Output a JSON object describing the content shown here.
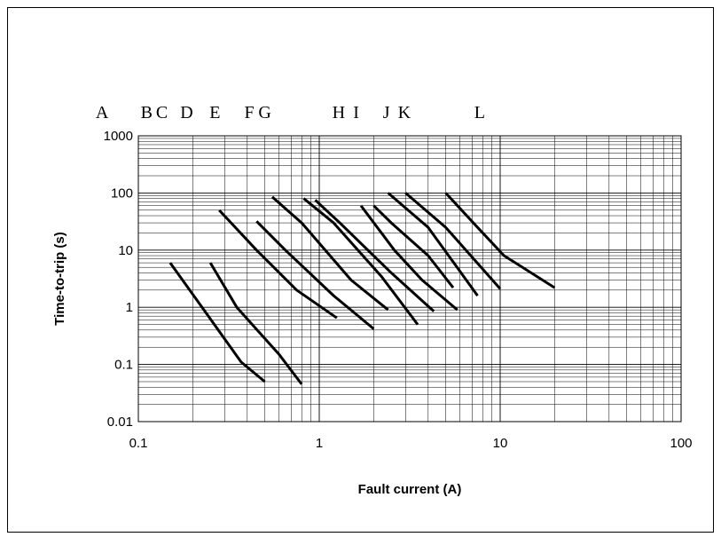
{
  "chart_data": {
    "type": "line",
    "title": "",
    "xlabel": "Fault current (A)",
    "ylabel": "Time-to-trip (s)",
    "x_scale": "log",
    "y_scale": "log",
    "xlim": [
      0.1,
      100
    ],
    "ylim": [
      0.01,
      1000
    ],
    "grid": true,
    "legend": "none",
    "x_ticks": [
      {
        "value": 0.1,
        "label": "0.1"
      },
      {
        "value": 1,
        "label": "1"
      },
      {
        "value": 10,
        "label": "10"
      },
      {
        "value": 100,
        "label": "100"
      }
    ],
    "y_ticks": [
      {
        "value": 1000,
        "label": "1000"
      },
      {
        "value": 100,
        "label": "100"
      },
      {
        "value": 10,
        "label": "10"
      },
      {
        "value": 1,
        "label": "1"
      },
      {
        "value": 0.1,
        "label": "0.1"
      },
      {
        "value": 0.01,
        "label": "0.01"
      }
    ],
    "curve_labels": [
      {
        "text": "A",
        "x": 0.063
      },
      {
        "text": "B",
        "x": 0.111
      },
      {
        "text": "C",
        "x": 0.135
      },
      {
        "text": "D",
        "x": 0.185
      },
      {
        "text": "E",
        "x": 0.265
      },
      {
        "text": "F",
        "x": 0.41
      },
      {
        "text": "G",
        "x": 0.5
      },
      {
        "text": "H",
        "x": 1.28
      },
      {
        "text": "I",
        "x": 1.6
      },
      {
        "text": "J",
        "x": 2.35
      },
      {
        "text": "K",
        "x": 2.95
      },
      {
        "text": "L",
        "x": 7.7
      }
    ],
    "series": [
      {
        "points": [
          [
            0.15,
            6
          ],
          [
            0.22,
            1.1
          ],
          [
            0.37,
            0.11
          ],
          [
            0.5,
            0.05
          ]
        ]
      },
      {
        "points": [
          [
            0.25,
            6
          ],
          [
            0.35,
            1
          ],
          [
            0.6,
            0.15
          ],
          [
            0.8,
            0.045
          ]
        ]
      },
      {
        "points": [
          [
            0.28,
            50
          ],
          [
            0.45,
            10
          ],
          [
            0.75,
            2
          ],
          [
            1.25,
            0.65
          ]
        ]
      },
      {
        "points": [
          [
            0.45,
            32
          ],
          [
            0.65,
            10
          ],
          [
            1.2,
            1.6
          ],
          [
            2.0,
            0.42
          ]
        ]
      },
      {
        "points": [
          [
            0.55,
            85
          ],
          [
            0.8,
            30
          ],
          [
            1.5,
            3
          ],
          [
            2.4,
            0.9
          ]
        ]
      },
      {
        "points": [
          [
            0.82,
            80
          ],
          [
            1.2,
            30
          ],
          [
            2.2,
            3.5
          ],
          [
            3.5,
            0.5
          ]
        ]
      },
      {
        "points": [
          [
            0.95,
            75
          ],
          [
            1.3,
            30
          ],
          [
            2.5,
            4
          ],
          [
            4.3,
            0.85
          ]
        ]
      },
      {
        "points": [
          [
            1.7,
            60
          ],
          [
            2.6,
            10
          ],
          [
            3.7,
            3
          ],
          [
            5.8,
            0.9
          ]
        ]
      },
      {
        "points": [
          [
            2.0,
            60
          ],
          [
            2.5,
            30
          ],
          [
            4.0,
            8
          ],
          [
            5.5,
            2.2
          ]
        ]
      },
      {
        "points": [
          [
            2.4,
            100
          ],
          [
            4.0,
            25
          ],
          [
            7.5,
            1.6
          ]
        ]
      },
      {
        "points": [
          [
            3.0,
            100
          ],
          [
            5.0,
            25
          ],
          [
            10.0,
            2.1
          ]
        ]
      },
      {
        "points": [
          [
            5.0,
            100
          ],
          [
            7.5,
            25
          ],
          [
            10.5,
            8
          ],
          [
            20.0,
            2.2
          ]
        ]
      }
    ]
  }
}
